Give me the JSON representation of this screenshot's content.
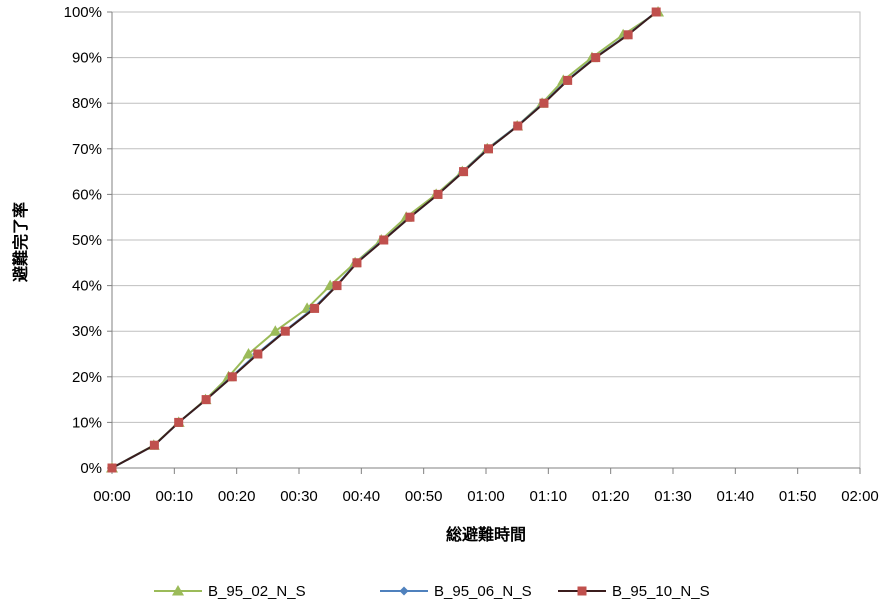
{
  "chart_data": {
    "type": "line",
    "title": "",
    "xlabel": "総避難時間",
    "ylabel": "避難完了率",
    "x_ticks": [
      "00:00",
      "00:10",
      "00:20",
      "00:30",
      "00:40",
      "00:50",
      "01:00",
      "01:10",
      "01:20",
      "01:30",
      "01:40",
      "01:50",
      "02:00"
    ],
    "y_ticks": [
      "0%",
      "10%",
      "20%",
      "30%",
      "40%",
      "50%",
      "60%",
      "70%",
      "80%",
      "90%",
      "100%"
    ],
    "xlim_minutes": [
      0,
      120
    ],
    "ylim_percent": [
      0,
      100
    ],
    "grid": "horizontal",
    "legend_position": "bottom",
    "series": [
      {
        "name": "B_95_02_N_S",
        "color": "#9bbb59",
        "marker": "triangle",
        "points": [
          [
            0,
            0
          ],
          [
            6.7,
            5
          ],
          [
            10.7,
            10
          ],
          [
            15,
            15
          ],
          [
            18.7,
            20
          ],
          [
            21.9,
            25
          ],
          [
            26.2,
            30
          ],
          [
            31.3,
            35
          ],
          [
            35,
            40
          ],
          [
            39,
            45
          ],
          [
            43.2,
            50
          ],
          [
            47.2,
            55
          ],
          [
            52,
            60
          ],
          [
            56.2,
            65
          ],
          [
            60.2,
            70
          ],
          [
            65,
            75
          ],
          [
            69,
            80
          ],
          [
            72.4,
            85
          ],
          [
            77,
            90
          ],
          [
            82,
            95
          ],
          [
            87.6,
            100
          ]
        ]
      },
      {
        "name": "B_95_06_N_S",
        "color": "#4f81bd",
        "marker": "diamond",
        "points": [
          [
            0,
            0
          ],
          [
            6.8,
            5
          ],
          [
            10.7,
            10
          ],
          [
            15.1,
            15
          ],
          [
            19.2,
            20
          ],
          [
            23.2,
            25
          ],
          [
            27.7,
            30
          ],
          [
            32.3,
            35
          ],
          [
            36,
            40
          ],
          [
            39.2,
            45
          ],
          [
            43.5,
            50
          ],
          [
            47.8,
            55
          ],
          [
            52.3,
            60
          ],
          [
            56.3,
            65
          ],
          [
            60.3,
            70
          ],
          [
            65,
            75
          ],
          [
            69.2,
            80
          ],
          [
            73,
            85
          ],
          [
            77.5,
            90
          ],
          [
            82.7,
            95
          ],
          [
            87.3,
            100
          ]
        ]
      },
      {
        "name": "B_95_10_N_S",
        "color": "#c0504d",
        "marker": "square",
        "points": [
          [
            0,
            0
          ],
          [
            6.8,
            5
          ],
          [
            10.7,
            10
          ],
          [
            15.1,
            15
          ],
          [
            19.3,
            20
          ],
          [
            23.4,
            25
          ],
          [
            27.8,
            30
          ],
          [
            32.5,
            35
          ],
          [
            36.1,
            40
          ],
          [
            39.3,
            45
          ],
          [
            43.6,
            50
          ],
          [
            47.8,
            55
          ],
          [
            52.3,
            60
          ],
          [
            56.4,
            65
          ],
          [
            60.4,
            70
          ],
          [
            65.1,
            75
          ],
          [
            69.3,
            80
          ],
          [
            73.1,
            85
          ],
          [
            77.6,
            90
          ],
          [
            82.8,
            95
          ],
          [
            87.3,
            100
          ]
        ]
      }
    ]
  }
}
